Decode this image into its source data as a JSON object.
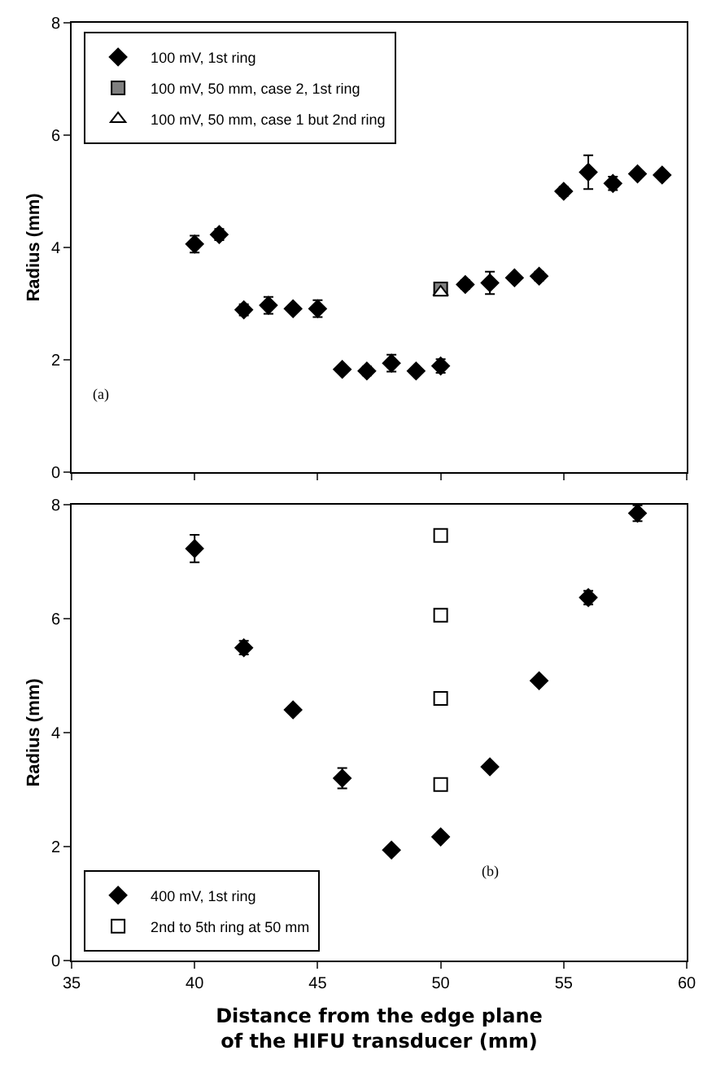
{
  "chart_data": [
    {
      "type": "scatter",
      "ylabel": "Radius (mm)",
      "xlim": [
        35,
        60
      ],
      "xticks": [
        35,
        40,
        45,
        50,
        55,
        60
      ],
      "ylim": [
        0,
        8
      ],
      "yticks": [
        0,
        2,
        4,
        6,
        8
      ],
      "tick_labels": "y",
      "legend": "top left",
      "grid": false,
      "annotations": [
        "(a)"
      ],
      "series": [
        {
          "name": "100 mV, 1st ring",
          "color": "#000000",
          "marker": "diamond",
          "x": [
            40,
            41,
            42,
            43,
            44,
            45,
            46,
            47,
            48,
            49,
            50,
            51,
            52,
            53,
            54,
            55,
            56,
            57,
            58,
            59
          ],
          "values": [
            4.06,
            4.23,
            2.89,
            2.97,
            2.91,
            2.91,
            1.83,
            1.8,
            1.94,
            1.8,
            1.89,
            3.34,
            3.37,
            3.46,
            3.49,
            5.0,
            5.34,
            5.14,
            5.31,
            5.29
          ],
          "errors": [
            0.15,
            0.1,
            0.1,
            0.15,
            null,
            0.15,
            0.05,
            0.08,
            0.15,
            0.05,
            0.12,
            0.08,
            0.2,
            0.05,
            0.08,
            0.08,
            0.3,
            0.12,
            0.05,
            0.05
          ]
        },
        {
          "name": "100 mV, 50 mm, case 2, 1st ring",
          "color": "#808080",
          "marker": "square",
          "x": [
            50
          ],
          "values": [
            3.26
          ]
        },
        {
          "name": "100 mV, 50 mm, case 1 but 2nd ring",
          "color": "#ffffff",
          "marker": "triangle",
          "x": [
            50
          ],
          "values": [
            3.2
          ]
        }
      ]
    },
    {
      "type": "scatter",
      "ylabel": "Radius (mm)",
      "xlabel": "Distance from the edge plane\nof the HIFU transducer (mm)",
      "xlim": [
        35,
        60
      ],
      "xticks": [
        35,
        40,
        45,
        50,
        55,
        60
      ],
      "ylim": [
        0,
        8
      ],
      "yticks": [
        0,
        2,
        4,
        6,
        8
      ],
      "legend": "bottom left",
      "grid": false,
      "annotations": [
        "(b)"
      ],
      "series": [
        {
          "name": "400 mV, 1st ring",
          "color": "#000000",
          "marker": "diamond",
          "x": [
            40,
            42,
            44,
            46,
            48,
            50,
            52,
            54,
            56,
            58
          ],
          "values": [
            7.23,
            5.49,
            4.4,
            3.2,
            1.94,
            2.17,
            3.4,
            4.91,
            6.37,
            7.85
          ],
          "errors": [
            0.24,
            0.12,
            0.05,
            0.18,
            0.05,
            0.06,
            0.05,
            0.06,
            0.12,
            0.14
          ]
        },
        {
          "name": "2nd to 5th ring at 50 mm",
          "color": "#ffffff",
          "marker": "square",
          "x": [
            50,
            50,
            50,
            50
          ],
          "values": [
            7.46,
            6.06,
            4.6,
            3.09
          ]
        }
      ]
    }
  ]
}
